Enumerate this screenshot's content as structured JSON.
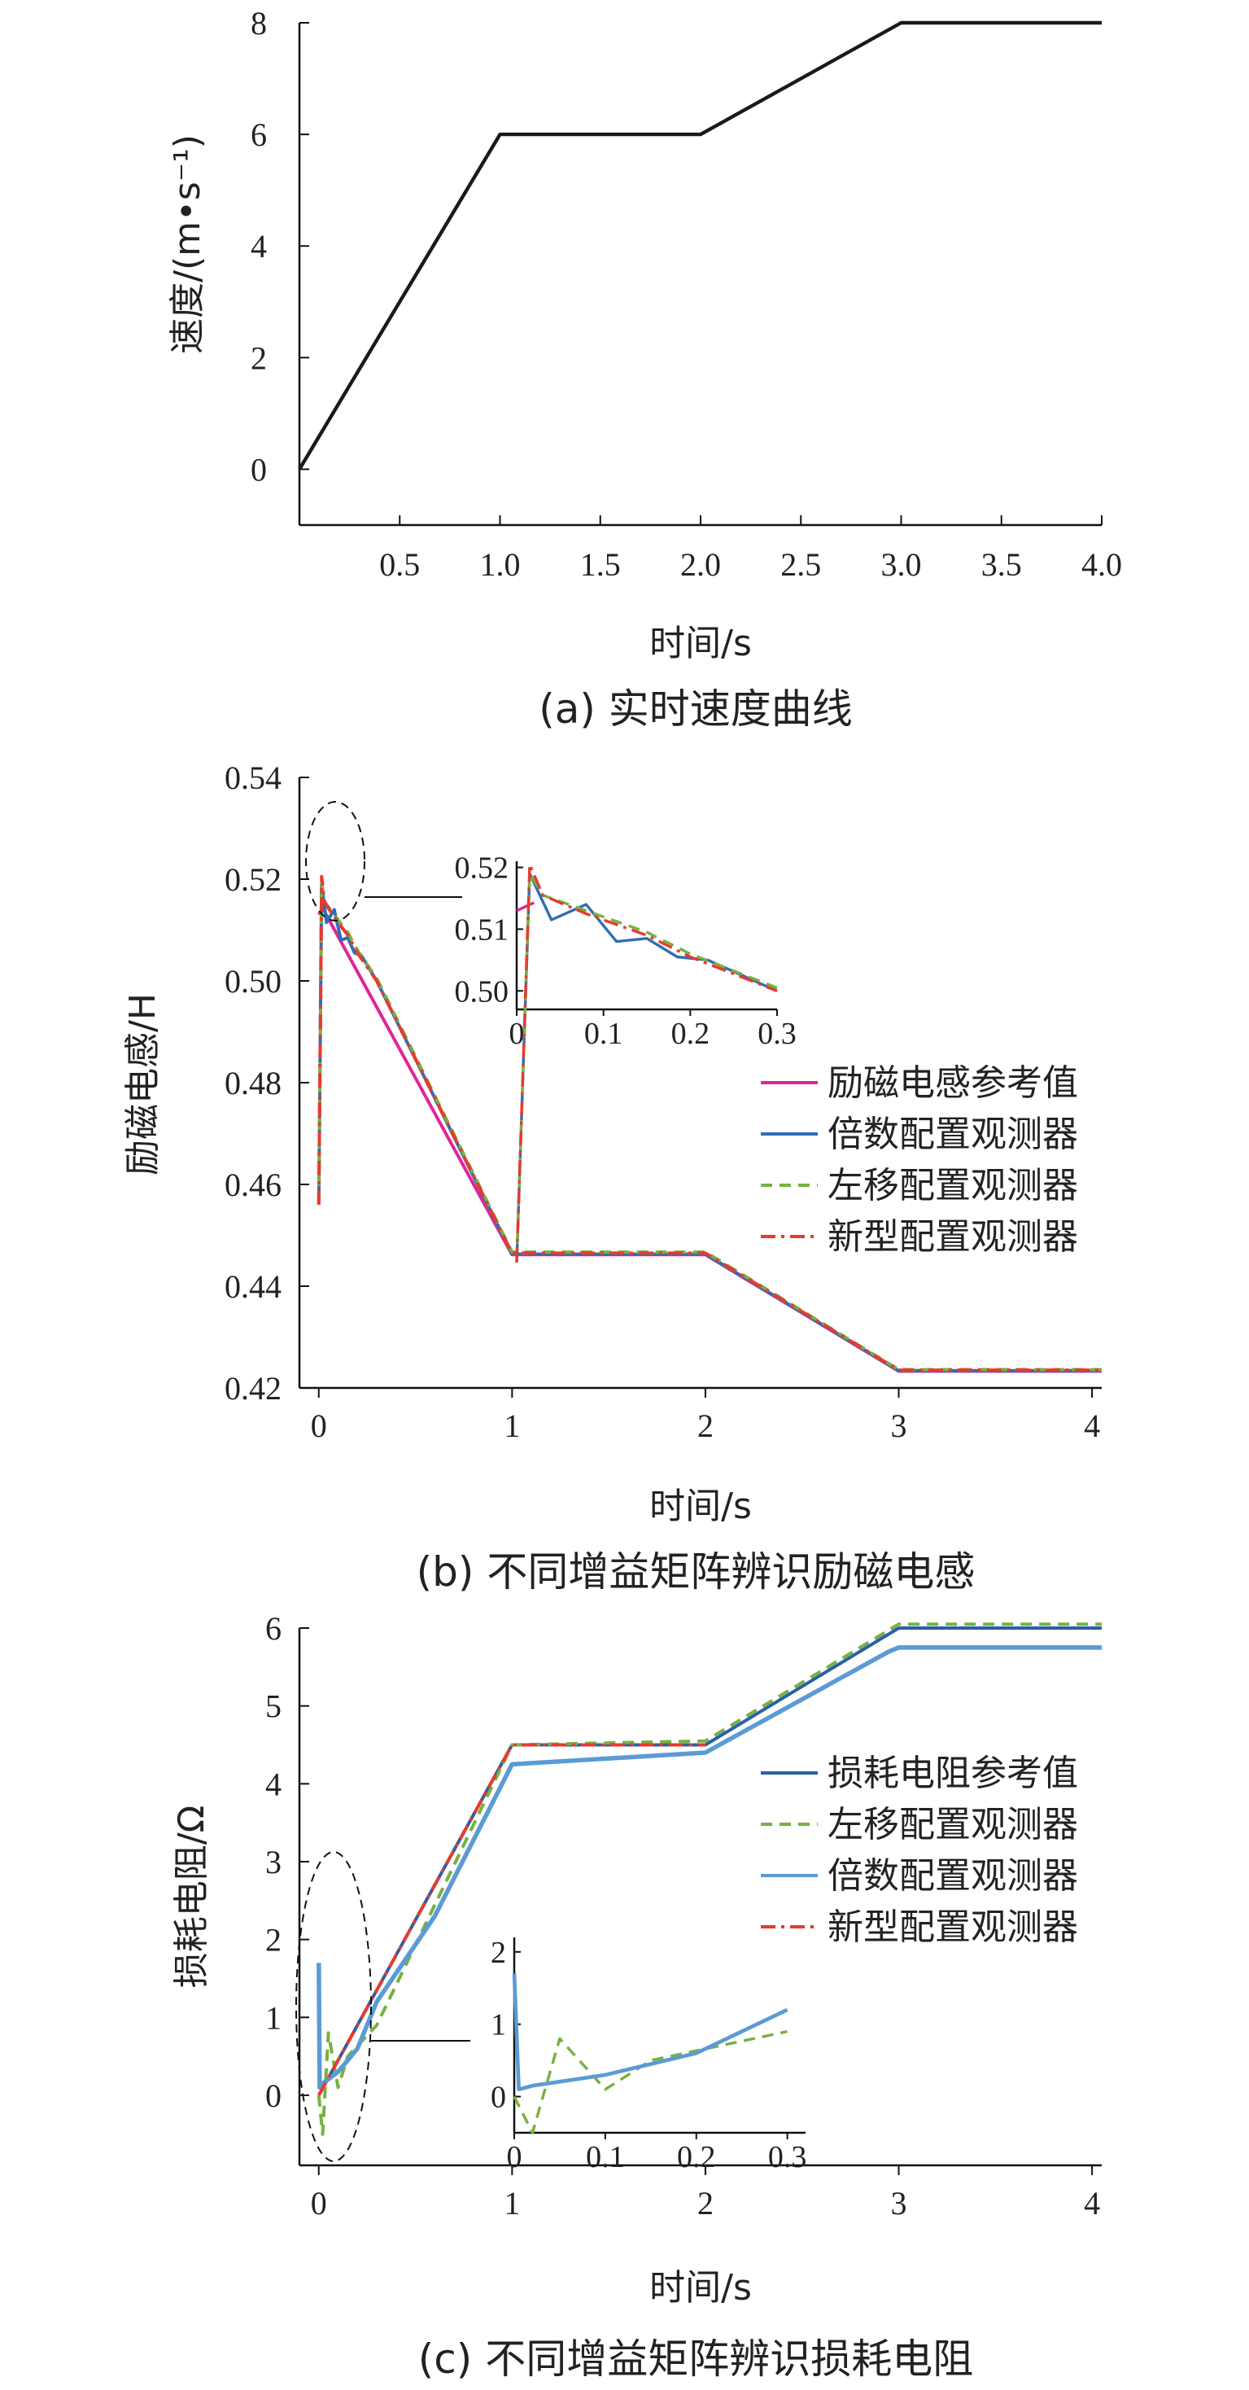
{
  "chart_data": [
    {
      "type": "line",
      "title": "(a) 实时速度曲线",
      "xlabel": "时间/s",
      "ylabel": "速度/(m•s⁻¹)",
      "xlim": [
        0,
        4
      ],
      "ylim": [
        -1,
        8
      ],
      "xticks": [
        "0.5",
        "1.0",
        "1.5",
        "2.0",
        "2.5",
        "3.0",
        "3.5",
        "4.0"
      ],
      "yticks": [
        "0",
        "2",
        "4",
        "6",
        "8"
      ],
      "series": [
        {
          "x": [
            0,
            1.0,
            2.0,
            3.0,
            4.0
          ],
          "y": [
            0,
            6,
            6,
            8,
            8
          ],
          "color": "#1a1a1a"
        }
      ]
    },
    {
      "type": "line",
      "title": "(b) 不同增益矩阵辨识励磁电感",
      "xlabel": "时间/s",
      "ylabel": "励磁电感/H",
      "xlim": [
        -0.1,
        4.05
      ],
      "ylim": [
        0.42,
        0.54
      ],
      "xticks": [
        "0",
        "1",
        "2",
        "3",
        "4"
      ],
      "yticks": [
        "0.42",
        "0.44",
        "0.46",
        "0.48",
        "0.50",
        "0.52",
        "0.54"
      ],
      "legend_position": "right",
      "series": [
        {
          "name": "励磁电感参考值",
          "color": "#e0249a",
          "dash": "solid",
          "x": [
            0,
            0.02,
            1.0,
            2.0,
            3.0,
            4.05
          ],
          "y": [
            0.513,
            0.5143,
            0.4462,
            0.4462,
            0.4233,
            0.4233
          ]
        },
        {
          "name": "倍数配置观测器",
          "color": "#2f6eb5",
          "dash": "solid",
          "x": [
            0.0,
            0.015,
            0.04,
            0.08,
            0.115,
            0.15,
            0.185,
            0.22,
            0.26,
            0.3,
            1.0,
            2.0,
            3.0,
            4.05
          ],
          "y": [
            0.456,
            0.519,
            0.5115,
            0.514,
            0.508,
            0.5085,
            0.5055,
            0.505,
            0.5025,
            0.5,
            0.4463,
            0.4463,
            0.4234,
            0.4234
          ]
        },
        {
          "name": "左移配置观测器",
          "color": "#77b140",
          "dash": "dashed",
          "x": [
            0.0,
            0.015,
            0.03,
            0.08,
            0.15,
            0.2,
            0.3,
            1.0,
            2.0,
            3.0,
            4.05
          ],
          "y": [
            0.456,
            0.519,
            0.5155,
            0.513,
            0.5095,
            0.506,
            0.5005,
            0.4467,
            0.4467,
            0.4236,
            0.4236
          ]
        },
        {
          "name": "新型配置观测器",
          "color": "#e63b2e",
          "dash": "dashdot",
          "x": [
            0.0,
            0.015,
            0.03,
            0.08,
            0.15,
            0.2,
            0.3,
            1.0,
            2.0,
            3.0,
            4.05
          ],
          "y": [
            0.456,
            0.5205,
            0.5155,
            0.5125,
            0.509,
            0.5055,
            0.5,
            0.4465,
            0.4465,
            0.4235,
            0.4235
          ]
        }
      ],
      "inset": {
        "xlim": [
          0,
          0.3
        ],
        "ylim": [
          0.497,
          0.521
        ],
        "xticks": [
          "0",
          "0.1",
          "0.2",
          "0.3"
        ],
        "yticks": [
          "0.50",
          "0.51",
          "0.52"
        ]
      }
    },
    {
      "type": "line",
      "title": "(c) 不同增益矩阵辨识损耗电阻",
      "xlabel": "时间/s",
      "ylabel": "损耗电阻/Ω",
      "xlim": [
        -0.1,
        4.05
      ],
      "ylim": [
        -0.9,
        6.0
      ],
      "xticks": [
        "0",
        "1",
        "2",
        "3",
        "4"
      ],
      "yticks": [
        "0",
        "1",
        "2",
        "3",
        "4",
        "5",
        "6"
      ],
      "legend_position": "right",
      "series": [
        {
          "name": "损耗电阻参考值",
          "color": "#2860a8",
          "dash": "solid",
          "x": [
            0,
            1.0,
            2.0,
            3.0,
            4.05
          ],
          "y": [
            0,
            4.5,
            4.5,
            6.0,
            6.0
          ]
        },
        {
          "name": "左移配置观测器",
          "color": "#77b140",
          "dash": "dashed",
          "x": [
            0,
            0.02,
            0.05,
            0.1,
            0.15,
            0.3,
            1.0,
            2.0,
            3.0,
            4.05
          ],
          "y": [
            0,
            -0.5,
            0.8,
            0.1,
            0.5,
            0.9,
            4.5,
            4.55,
            6.05,
            6.05
          ]
        },
        {
          "name": "倍数配置观测器",
          "color": "#5b9bd5",
          "dash": "solid",
          "x": [
            0,
            0.005,
            0.02,
            0.1,
            0.2,
            0.3,
            0.6,
            1.0,
            2.0,
            2.95,
            3.0,
            4.05
          ],
          "y": [
            1.7,
            0.1,
            0.15,
            0.3,
            0.6,
            1.2,
            2.3,
            4.25,
            4.4,
            5.7,
            5.75,
            5.75
          ]
        },
        {
          "name": "新型配置观测器",
          "color": "#e63b2e",
          "dash": "dashdot",
          "x": [
            0,
            1.0,
            2.0
          ],
          "y": [
            0,
            4.5,
            4.5
          ]
        }
      ],
      "inset": {
        "xlim": [
          0,
          0.32
        ],
        "ylim": [
          -0.5,
          2.2
        ],
        "xticks": [
          "0",
          "0.1",
          "0.2",
          "0.3"
        ],
        "yticks": [
          "0",
          "1",
          "2"
        ]
      }
    }
  ]
}
